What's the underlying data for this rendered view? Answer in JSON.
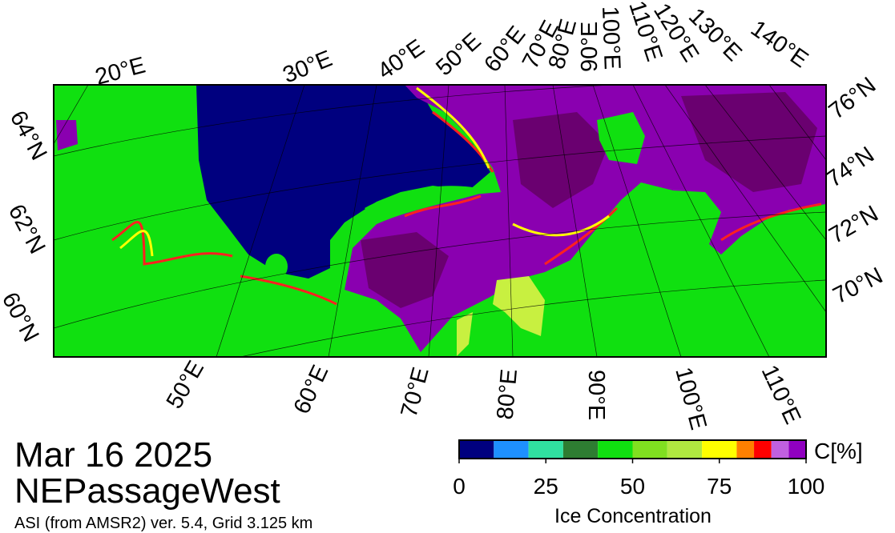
{
  "map": {
    "top_longitude_labels": [
      "20°E",
      "30°E",
      "40°E",
      "50°E",
      "60°E",
      "70°E",
      "80°E",
      "90°E",
      "100°E",
      "110°E",
      "120°E",
      "130°E",
      "140°E"
    ],
    "right_latitude_labels": [
      "76°N",
      "74°N",
      "72°N",
      "70°N"
    ],
    "left_latitude_labels": [
      "64°N",
      "62°N",
      "60°N"
    ],
    "bottom_longitude_labels": [
      "50°E",
      "60°E",
      "70°E",
      "80°E",
      "90°E",
      "100°E",
      "110°E"
    ]
  },
  "date": "Mar 16 2025",
  "region": "NEPassageWest",
  "product": "ASI (from AMSR2) ver. 5.4,  Grid 3.125 km",
  "colorbar": {
    "lim": [
      0,
      100
    ],
    "levels": [
      0,
      10,
      20,
      30,
      40,
      50,
      60,
      70,
      80,
      85,
      90,
      95,
      100
    ],
    "colors": [
      "#00007f",
      "#1e90ff",
      "#30e0a0",
      "#2e7d32",
      "#10e010",
      "#80e020",
      "#b0e840",
      "#ffff00",
      "#ff8000",
      "#ff0000",
      "#c060e0",
      "#9000c0"
    ],
    "ticks": [
      0,
      25,
      50,
      75,
      100
    ],
    "unit_label": "C[%]",
    "title": "Ice Concentration"
  }
}
